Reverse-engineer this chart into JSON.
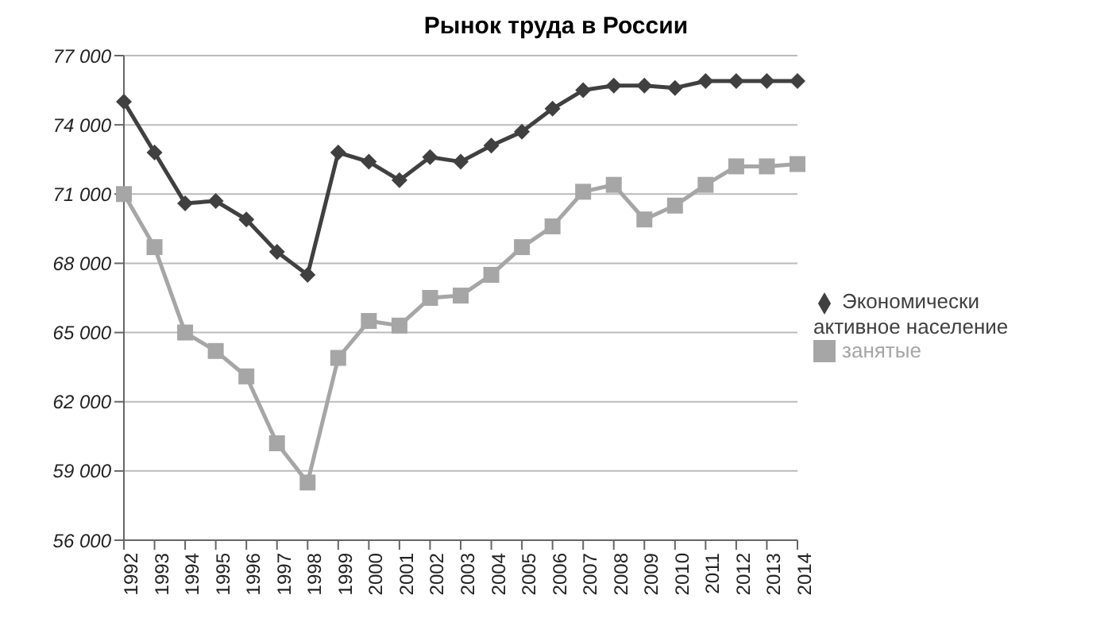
{
  "chart_data": {
    "type": "line",
    "title": "Рынок труда в России",
    "categories": [
      "1992",
      "1993",
      "1994",
      "1995",
      "1996",
      "1997",
      "1998",
      "1999",
      "2000",
      "2001",
      "2002",
      "2003",
      "2004",
      "2005",
      "2006",
      "2007",
      "2008",
      "2009",
      "2010",
      "2011",
      "2012",
      "2013",
      "2014"
    ],
    "series": [
      {
        "name": "Экономически активное население",
        "color": "#404040",
        "marker": "diamond",
        "values": [
          75000,
          72800,
          70600,
          70700,
          69900,
          68500,
          67500,
          72800,
          72400,
          71600,
          72600,
          72400,
          73100,
          73700,
          74700,
          75500,
          75700,
          75700,
          75600,
          75900,
          75900,
          75900,
          75900
        ]
      },
      {
        "name": "занятые",
        "color": "#a6a6a6",
        "marker": "square",
        "values": [
          71000,
          68700,
          65000,
          64200,
          63100,
          60200,
          58500,
          63900,
          65500,
          65300,
          66500,
          66600,
          67500,
          68700,
          69600,
          71100,
          71400,
          69900,
          70500,
          71400,
          72200,
          72200,
          72300
        ]
      }
    ],
    "ylim": [
      56000,
      77000
    ],
    "yticks": [
      {
        "value": 56000,
        "label": "56 000"
      },
      {
        "value": 59000,
        "label": "59 000"
      },
      {
        "value": 62000,
        "label": "62 000"
      },
      {
        "value": 65000,
        "label": "65 000"
      },
      {
        "value": 68000,
        "label": "68 000"
      },
      {
        "value": 71000,
        "label": "71 000"
      },
      {
        "value": 74000,
        "label": "74 000"
      },
      {
        "value": 77000,
        "label": "77 000"
      }
    ],
    "grid": "y",
    "legend": "right"
  }
}
